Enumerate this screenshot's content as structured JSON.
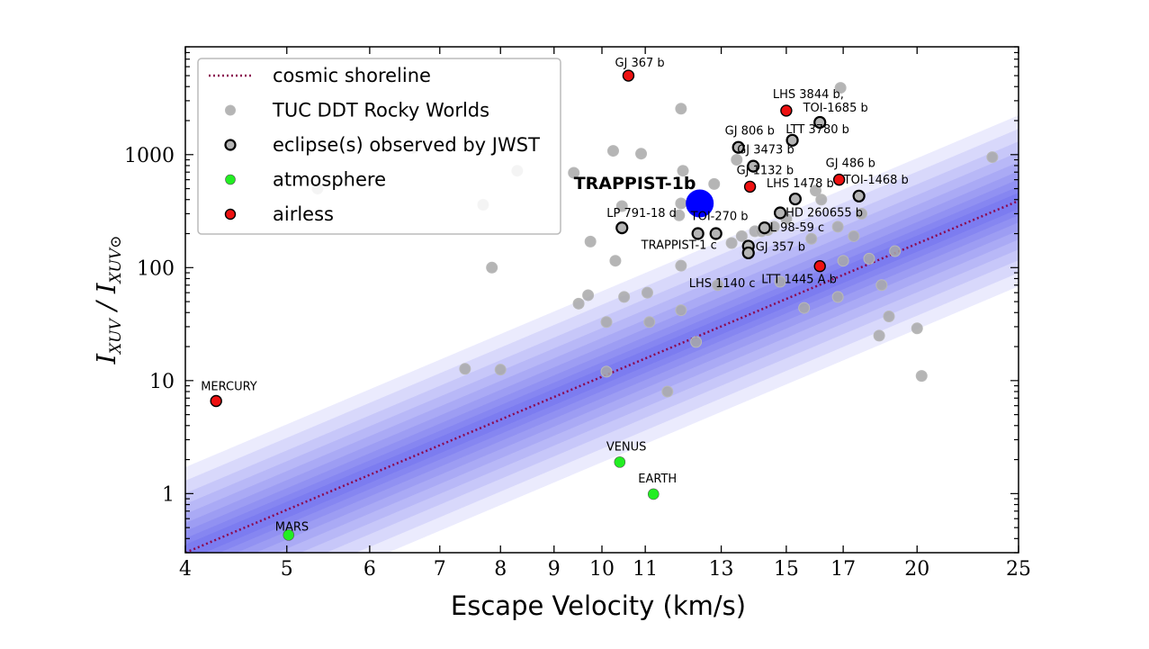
{
  "chart_data": {
    "type": "scatter",
    "xlabel": "Escape Velocity (km/s)",
    "ylabel": "I_XUV / I_XUV,⊙",
    "xscale": "log",
    "yscale": "log",
    "xlim": [
      4,
      25
    ],
    "ylim": [
      0.3,
      9000
    ],
    "xticks": [
      4,
      5,
      6,
      7,
      8,
      9,
      10,
      11,
      13,
      15,
      17,
      20,
      25
    ],
    "xticklabels": [
      "4",
      "5",
      "6",
      "7",
      "8",
      "9",
      "10",
      "11",
      "13",
      "15",
      "17",
      "20",
      "25"
    ],
    "yticks": [
      1,
      10,
      100,
      1000
    ],
    "yticklabels": [
      "1",
      "10",
      "100",
      "1000"
    ],
    "grid": false,
    "legend_position": "top-left",
    "colors": {
      "shoreline": "#8b0a50",
      "band": "#2222ee",
      "grey": "#a8a8a8",
      "atmosphere": "#22ee22",
      "airless": "#ee1111",
      "trappist": "#0000ff"
    },
    "legend": [
      {
        "label": "cosmic shoreline",
        "kind": "line"
      },
      {
        "label": "TUC DDT Rocky Worlds",
        "kind": "grey"
      },
      {
        "label": "eclipse(s) observed by JWST",
        "kind": "open"
      },
      {
        "label": "atmosphere",
        "kind": "atmosphere"
      },
      {
        "label": "airless",
        "kind": "airless"
      }
    ],
    "shoreline": {
      "x": [
        4,
        25
      ],
      "y": [
        0.3,
        390
      ]
    },
    "series": [
      {
        "name": "TUC DDT Rocky Worlds",
        "kind": "grey",
        "points": [
          [
            5.35,
            500
          ],
          [
            6.6,
            1150
          ],
          [
            7.7,
            360
          ],
          [
            8.3,
            720
          ],
          [
            9.4,
            690
          ],
          [
            9.75,
            170
          ],
          [
            10.25,
            1080
          ],
          [
            10.45,
            350
          ],
          [
            10.9,
            1020
          ],
          [
            10.3,
            115
          ],
          [
            9.5,
            48
          ],
          [
            9.7,
            57
          ],
          [
            10.1,
            33
          ],
          [
            10.5,
            55
          ],
          [
            11.05,
            60
          ],
          [
            11.1,
            33
          ],
          [
            11.9,
            42
          ],
          [
            11.9,
            104
          ],
          [
            11.85,
            290
          ],
          [
            11.9,
            370
          ],
          [
            11.95,
            720
          ],
          [
            11.9,
            2550
          ],
          [
            12.3,
            22
          ],
          [
            12.8,
            550
          ],
          [
            12.9,
            70
          ],
          [
            13.3,
            165
          ],
          [
            13.45,
            900
          ],
          [
            14.0,
            210
          ],
          [
            14.4,
            215
          ],
          [
            14.8,
            75
          ],
          [
            15.6,
            44
          ],
          [
            15.85,
            180
          ],
          [
            16.0,
            480
          ],
          [
            16.2,
            400
          ],
          [
            16.9,
            3900
          ],
          [
            17.4,
            190
          ],
          [
            16.8,
            230
          ],
          [
            17.0,
            115
          ],
          [
            16.8,
            55
          ],
          [
            17.7,
            300
          ],
          [
            18.0,
            120
          ],
          [
            18.5,
            70
          ],
          [
            18.4,
            25
          ],
          [
            18.8,
            37
          ],
          [
            19.05,
            140
          ],
          [
            20.0,
            29
          ],
          [
            20.2,
            11
          ],
          [
            23.6,
            950
          ],
          [
            7.4,
            12.7
          ],
          [
            8.0,
            12.5
          ],
          [
            10.1,
            12
          ],
          [
            7.85,
            100
          ],
          [
            11.55,
            8
          ],
          [
            13.6,
            190
          ],
          [
            14.2,
            210
          ],
          [
            14.6,
            230
          ],
          [
            15.0,
            270
          ]
        ]
      },
      {
        "name": "eclipse(s) observed by JWST",
        "kind": "open",
        "points": [
          [
            10.45,
            225
          ],
          [
            12.35,
            200
          ],
          [
            12.85,
            200
          ],
          [
            13.5,
            1160
          ],
          [
            13.95,
            790
          ],
          [
            13.8,
            155
          ],
          [
            13.8,
            135
          ],
          [
            14.3,
            225
          ],
          [
            14.8,
            305
          ],
          [
            15.2,
            1340
          ],
          [
            15.3,
            405
          ],
          [
            16.15,
            1930
          ],
          [
            17.6,
            430
          ]
        ]
      },
      {
        "name": "atmosphere",
        "kind": "atmosphere",
        "points": [
          [
            10.4,
            1.9
          ],
          [
            11.2,
            0.99
          ],
          [
            5.02,
            0.43
          ]
        ]
      },
      {
        "name": "airless",
        "kind": "airless",
        "points": [
          [
            10.6,
            5000
          ],
          [
            15.0,
            2450
          ],
          [
            13.85,
            520
          ],
          [
            16.85,
            600
          ],
          [
            16.15,
            103
          ],
          [
            4.28,
            6.6
          ]
        ]
      },
      {
        "name": "TRAPPIST-1b",
        "kind": "trappist",
        "points": [
          [
            12.4,
            370
          ]
        ]
      }
    ],
    "annotations": [
      {
        "text": "GJ 367 b",
        "x": 10.6,
        "y": 5000,
        "dx": -15,
        "dy": -10
      },
      {
        "text": "LHS 3844 b,",
        "x": 15.0,
        "y": 2450,
        "dx": -15,
        "dy": -14
      },
      {
        "text": "TOI-1685 b",
        "x": 15.2,
        "y": 1930,
        "dx": 12,
        "dy": -12
      },
      {
        "text": "LTT 3780 b",
        "x": 16.15,
        "y": 1930,
        "dx": -38,
        "dy": 12
      },
      {
        "text": "GJ 806 b",
        "x": 13.5,
        "y": 1160,
        "dx": -15,
        "dy": -14
      },
      {
        "text": "GJ 3473 b",
        "x": 13.95,
        "y": 790,
        "dx": -18,
        "dy": -14
      },
      {
        "text": "GJ 486 b",
        "x": 16.85,
        "y": 600,
        "dx": -15,
        "dy": -14
      },
      {
        "text": "TOI-1468 b",
        "x": 17.6,
        "y": 430,
        "dx": -17,
        "dy": -14
      },
      {
        "text": "GJ 1132 b",
        "x": 13.85,
        "y": 520,
        "dx": -15,
        "dy": -14
      },
      {
        "text": "LHS 1478 b",
        "x": 15.3,
        "y": 405,
        "dx": -32,
        "dy": -13
      },
      {
        "text": "TRAPPIST-1b",
        "x": 12.4,
        "y": 370,
        "dx": -140,
        "dy": -16,
        "big": true
      },
      {
        "text": "HD 260655 b",
        "x": 14.8,
        "y": 305,
        "dx": 6,
        "dy": 4
      },
      {
        "text": "LP 791-18 d",
        "x": 10.45,
        "y": 225,
        "dx": -17,
        "dy": -12
      },
      {
        "text": "TOI-270 b",
        "x": 12.35,
        "y": 200,
        "dx": -8,
        "dy": -15
      },
      {
        "text": "L 98-59 c",
        "x": 14.3,
        "y": 225,
        "dx": 6,
        "dy": 4
      },
      {
        "text": "TRAPPIST-1 c",
        "x": 12.35,
        "y": 200,
        "dx": -63,
        "dy": 17
      },
      {
        "text": "GJ 357 b",
        "x": 13.8,
        "y": 155,
        "dx": 8,
        "dy": 5
      },
      {
        "text": "LHS 1140 c",
        "x": 13.8,
        "y": 135,
        "dx": -66,
        "dy": 38
      },
      {
        "text": "LTT 1445 A b",
        "x": 16.15,
        "y": 103,
        "dx": -65,
        "dy": 19
      },
      {
        "text": "MERCURY",
        "x": 4.28,
        "y": 6.6,
        "dx": -17,
        "dy": -12
      },
      {
        "text": "VENUS",
        "x": 10.4,
        "y": 1.9,
        "dx": -15,
        "dy": -13
      },
      {
        "text": "EARTH",
        "x": 11.2,
        "y": 0.99,
        "dx": -17,
        "dy": -13
      },
      {
        "text": "MARS",
        "x": 5.02,
        "y": 0.43,
        "dx": -15,
        "dy": -5
      }
    ]
  }
}
